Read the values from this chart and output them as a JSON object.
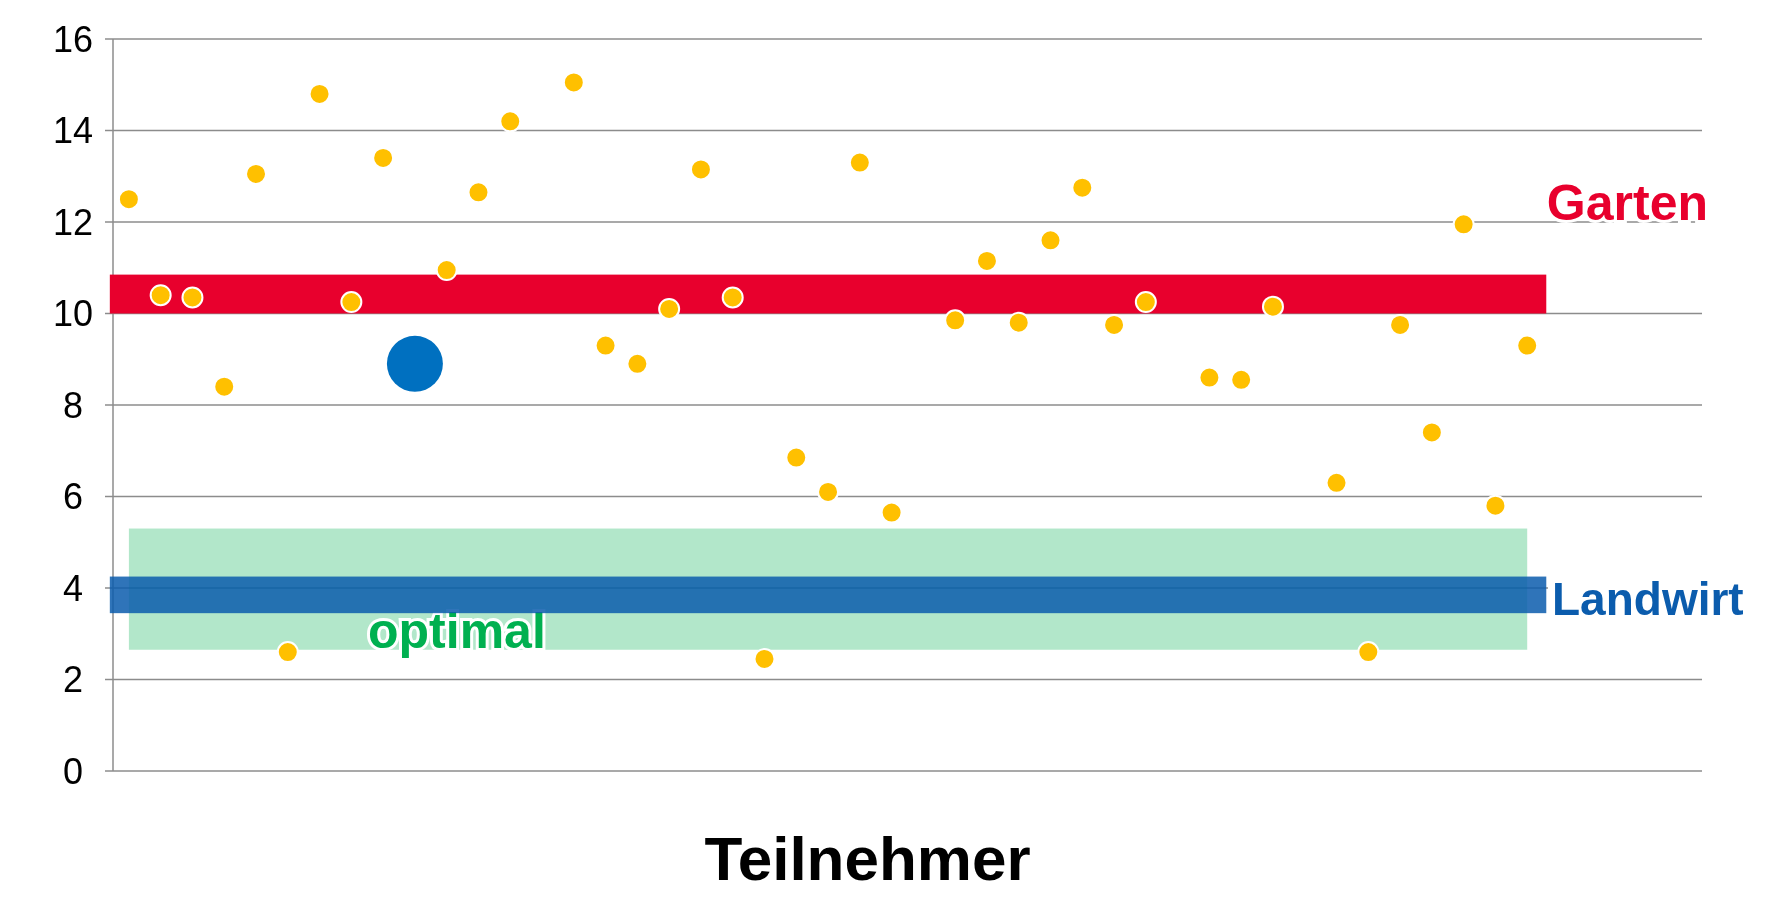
{
  "chart_data": {
    "type": "scatter",
    "xlabel": "Teilnehmer",
    "categories": [
      null,
      null,
      null,
      null,
      null,
      null,
      null,
      null,
      null,
      null,
      null,
      null,
      null,
      null,
      null,
      null,
      null,
      null,
      null,
      null,
      null,
      null,
      null,
      null,
      null,
      null,
      null,
      null,
      null,
      null,
      null,
      null,
      null,
      null,
      null,
      null,
      null,
      null,
      null,
      null,
      null,
      null,
      null,
      null,
      null,
      null,
      null,
      null,
      null,
      null
    ],
    "series": [
      {
        "color": "#ffc000",
        "values": [
          12.5,
          10.4,
          10.35,
          8.4,
          13.05,
          2.6,
          14.8,
          10.25,
          13.4,
          null,
          10.95,
          12.65,
          14.2,
          null,
          15.05,
          9.3,
          8.9,
          10.1,
          13.15,
          10.35,
          2.45,
          6.85,
          6.1,
          13.3,
          5.65,
          null,
          9.85,
          11.15,
          9.8,
          11.6,
          12.75,
          9.75,
          10.25,
          null,
          8.6,
          8.55,
          10.15,
          null,
          6.3,
          2.6,
          9.75,
          7.4,
          11.95,
          5.8,
          9.3,
          null,
          null,
          null,
          null,
          null
        ]
      },
      {
        "color": "#0070c0",
        "values": [
          null,
          null,
          null,
          null,
          null,
          null,
          null,
          null,
          null,
          8.9,
          null,
          null,
          null,
          null,
          null,
          null,
          null,
          null,
          null,
          null,
          null,
          null,
          null,
          null,
          null,
          null,
          null,
          null,
          null,
          null,
          null,
          null,
          null,
          null,
          null,
          null,
          null,
          null,
          null,
          null,
          null,
          null,
          null,
          null,
          null,
          null,
          null,
          null,
          null,
          null
        ]
      }
    ],
    "bands": [
      {
        "axis": "y",
        "from": 2.65,
        "to": 5.3,
        "label": "optimal",
        "color": "#00b050"
      },
      {
        "axis": "y",
        "from": 3.45,
        "to": 4.25,
        "label": "Landwirt",
        "color": "#0b5cad"
      },
      {
        "axis": "y",
        "from": 10,
        "to": 10.85,
        "label": "Garten",
        "color": "#e8002d"
      }
    ],
    "ylim": [
      0,
      16
    ],
    "yticks": [
      0,
      2,
      4,
      6,
      8,
      10,
      12,
      14,
      16
    ],
    "grid": "y",
    "marker": "circle"
  }
}
